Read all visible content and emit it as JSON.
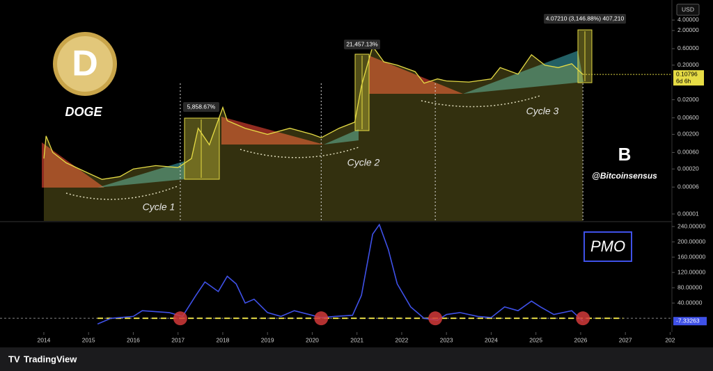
{
  "currency": "USD",
  "coin": "DOGE",
  "watermark": "@Bitcoinsensus",
  "branding": "TradingView",
  "chart_data": [
    {
      "type": "area",
      "log": true,
      "color": "#e6dc45",
      "x": [
        2014.0,
        2014.05,
        2014.2,
        2014.5,
        2015.0,
        2015.3,
        2015.7,
        2016.0,
        2016.5,
        2017.0,
        2017.3,
        2017.45,
        2017.7,
        2018.0,
        2018.1,
        2018.5,
        2019.0,
        2019.5,
        2020.0,
        2020.2,
        2020.6,
        2020.95,
        2021.1,
        2021.35,
        2021.6,
        2021.9,
        2022.3,
        2022.5,
        2022.8,
        2023.0,
        2023.5,
        2024.0,
        2024.2,
        2024.6,
        2024.9,
        2025.2,
        2025.5,
        2025.8,
        2026.05
      ],
      "values": [
        0.0004,
        0.0018,
        0.0006,
        0.0003,
        0.00015,
        0.0001,
        0.00012,
        0.0002,
        0.00025,
        0.00022,
        0.0004,
        0.003,
        0.001,
        0.012,
        0.005,
        0.003,
        0.002,
        0.003,
        0.002,
        0.0016,
        0.003,
        0.0045,
        0.05,
        0.7,
        0.25,
        0.2,
        0.13,
        0.06,
        0.08,
        0.07,
        0.065,
        0.08,
        0.17,
        0.11,
        0.4,
        0.2,
        0.17,
        0.22,
        0.10796
      ],
      "xlim": [
        2013.02,
        2028.04
      ],
      "ylim": [
        6.3e-06,
        12.1
      ],
      "yticks": [
        {
          "value": 4,
          "label": "4.00000"
        },
        {
          "value": 2,
          "label": "2.00000"
        },
        {
          "value": 0.6,
          "label": "0.60000"
        },
        {
          "value": 0.2,
          "label": "0.20000"
        },
        {
          "value": 0.02,
          "label": "0.02000"
        },
        {
          "value": 0.006,
          "label": "0.00600"
        },
        {
          "value": 0.002,
          "label": "0.00200"
        },
        {
          "value": 0.0006,
          "label": "0.00060"
        },
        {
          "value": 0.0002,
          "label": "0.00020"
        },
        {
          "value": 6e-05,
          "label": "0.00006"
        },
        1e-05
      ],
      "last_value": 0.10796,
      "countdown": "6d 6h",
      "annotations": [
        "5,858.67%",
        "21,457.13%",
        "4.07210 (3,146.88%) 407,210"
      ],
      "cycles": [
        "Cycle 1",
        "Cycle 2",
        "Cycle 3"
      ]
    },
    {
      "type": "line",
      "title": "PMO",
      "color": "#3f51e8",
      "x": [
        2015.2,
        2015.5,
        2016.0,
        2016.2,
        2016.8,
        2017.1,
        2017.4,
        2017.6,
        2017.9,
        2018.1,
        2018.3,
        2018.5,
        2018.7,
        2019.0,
        2019.3,
        2019.6,
        2020.0,
        2020.2,
        2020.5,
        2020.9,
        2021.1,
        2021.35,
        2021.5,
        2021.7,
        2021.9,
        2022.2,
        2022.5,
        2022.8,
        2023.0,
        2023.3,
        2023.7,
        2024.0,
        2024.3,
        2024.6,
        2024.9,
        2025.1,
        2025.4,
        2025.8,
        2026.05
      ],
      "values": [
        -15,
        0,
        5,
        20,
        15,
        5,
        60,
        95,
        70,
        110,
        90,
        40,
        50,
        15,
        5,
        20,
        8,
        2,
        5,
        8,
        60,
        220,
        245,
        180,
        90,
        30,
        0,
        -5,
        10,
        15,
        5,
        2,
        30,
        20,
        45,
        30,
        10,
        20,
        -7.33263
      ],
      "xlim": [
        2013.02,
        2028.04
      ],
      "ylim": [
        -36,
        251
      ],
      "yticks": [
        {
          "value": 240,
          "label": "240.00000"
        },
        {
          "value": 200,
          "label": "200.00000"
        },
        {
          "value": 160,
          "label": "160.00000"
        },
        {
          "value": 120,
          "label": "120.00000"
        },
        {
          "value": 80,
          "label": "80.00000"
        },
        {
          "value": 40,
          "label": "40.00000"
        }
      ],
      "xticks": [
        2014,
        2015,
        2016,
        2017,
        2018,
        2019,
        2020,
        2021,
        2022,
        2023,
        2024,
        2025,
        2026,
        2027,
        {
          "value": 2028,
          "label": "202"
        }
      ],
      "last_value": -7.33263,
      "signals": [
        2017.05,
        2020.2,
        2022.75,
        2026.05
      ]
    }
  ]
}
